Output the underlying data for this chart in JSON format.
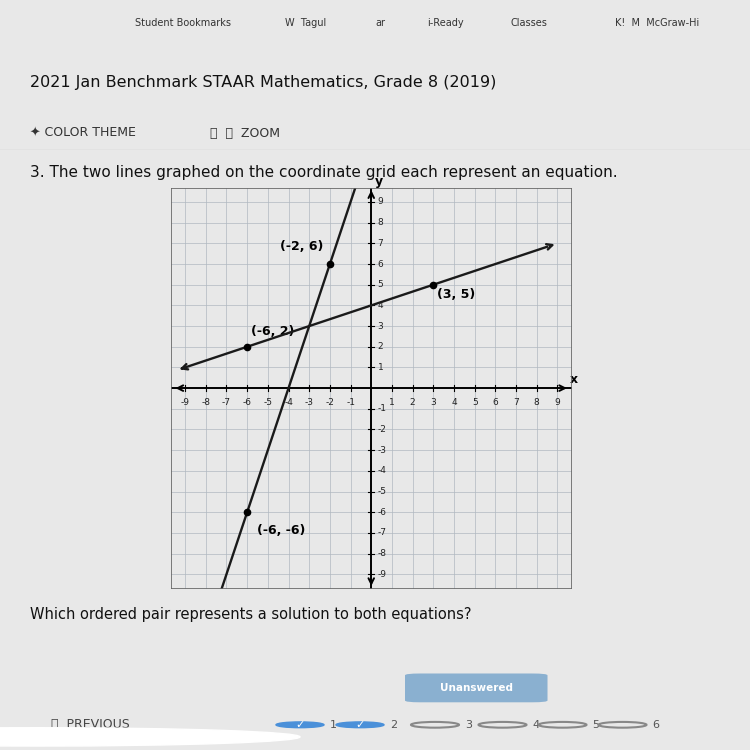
{
  "grid_range": [
    -9,
    9
  ],
  "line1_points": [
    [
      -6,
      -6
    ],
    [
      -2,
      6
    ]
  ],
  "line2_points": [
    [
      -6,
      2
    ],
    [
      3,
      5
    ]
  ],
  "label1": "(-2, 6)",
  "label2": "(-6, 2)",
  "label3": "(3, 5)",
  "label4": "(-6, -6)",
  "dot1": [
    -2,
    6
  ],
  "dot2": [
    -6,
    2
  ],
  "dot3": [
    3,
    5
  ],
  "dot4": [
    -6,
    -6
  ],
  "line_color": "#1a1a1a",
  "dot_color": "#000000",
  "grid_color": "#b0b8c0",
  "bg_color": "#ffffff",
  "axis_color": "#000000",
  "annotation_fontsize": 9,
  "page_bg": "#e8e8e8",
  "browser_bar_bg": "#d0d4d8",
  "content_bg": "#f5f5f5",
  "title_line1": "2021 Jan Benchmark STAAR Mathematics, Grade 8 (2019)",
  "toolbar_text": "COLOR THEME        ZOOM",
  "question_text": "3. The two lines graphed on the coordinate grid each represent an equation.",
  "question_below": "Which ordered pair represents a solution to both equations?",
  "xlabel": "x",
  "ylabel": "y"
}
